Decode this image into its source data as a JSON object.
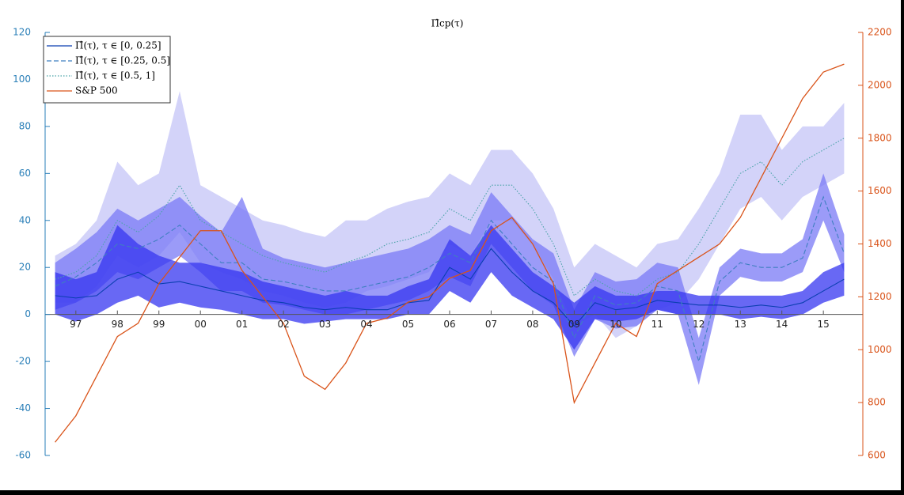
{
  "chart_data": {
    "type": "line",
    "title": "Π̂cp(τ)",
    "x": [
      1996.5,
      1997,
      1997.5,
      1998,
      1998.5,
      1999,
      1999.5,
      2000,
      2000.5,
      2001,
      2001.5,
      2002,
      2002.5,
      2003,
      2003.5,
      2004,
      2004.5,
      2005,
      2005.5,
      2006,
      2006.5,
      2007,
      2007.5,
      2008,
      2008.5,
      2009,
      2009.5,
      2010,
      2010.5,
      2011,
      2011.5,
      2012,
      2012.5,
      2013,
      2013.5,
      2014,
      2014.5,
      2015,
      2015.5
    ],
    "xlim": [
      1996.26,
      2015.95
    ],
    "xticks": [
      {
        "value": 1997,
        "label": "97"
      },
      {
        "value": 1998,
        "label": "98"
      },
      {
        "value": 1999,
        "label": "99"
      },
      {
        "value": 2000,
        "label": "00"
      },
      {
        "value": 2001,
        "label": "01"
      },
      {
        "value": 2002,
        "label": "02"
      },
      {
        "value": 2003,
        "label": "03"
      },
      {
        "value": 2004,
        "label": "04"
      },
      {
        "value": 2005,
        "label": "05"
      },
      {
        "value": 2006,
        "label": "06"
      },
      {
        "value": 2007,
        "label": "07"
      },
      {
        "value": 2008,
        "label": "08"
      },
      {
        "value": 2009,
        "label": "09"
      },
      {
        "value": 2010,
        "label": "10"
      },
      {
        "value": 2011,
        "label": "11"
      },
      {
        "value": 2012,
        "label": "12"
      },
      {
        "value": 2013,
        "label": "13"
      },
      {
        "value": 2014,
        "label": "14"
      },
      {
        "value": 2015,
        "label": "15"
      }
    ],
    "ylim": [
      -60,
      120
    ],
    "yticks": [
      -60,
      -40,
      -20,
      0,
      20,
      40,
      60,
      80,
      100,
      120
    ],
    "y2lim": [
      600,
      2200
    ],
    "y2ticks": [
      600,
      800,
      1000,
      1200,
      1400,
      1600,
      1800,
      2000,
      2200
    ],
    "legend": "upper left",
    "series": [
      {
        "name": "Π̂(τ), τ ∈ [0, 0.25]",
        "color": "#0a3fb0",
        "band_color": "#3535f0",
        "dash": "solid",
        "values": [
          8,
          7,
          8,
          15,
          18,
          13,
          14,
          12,
          10,
          8,
          6,
          5,
          3,
          2,
          3,
          2,
          2,
          5,
          6,
          20,
          15,
          28,
          18,
          10,
          5,
          -5,
          5,
          2,
          3,
          6,
          5,
          4,
          4,
          3,
          4,
          3,
          5,
          10,
          15
        ],
        "lower": [
          0,
          -3,
          0,
          5,
          8,
          3,
          5,
          3,
          2,
          0,
          -2,
          -2,
          -4,
          -3,
          -2,
          -2,
          -2,
          0,
          0,
          10,
          5,
          18,
          8,
          3,
          -2,
          -15,
          -2,
          -3,
          -2,
          2,
          0,
          0,
          0,
          -2,
          -1,
          -2,
          0,
          5,
          8
        ],
        "upper": [
          18,
          15,
          18,
          38,
          30,
          25,
          22,
          22,
          20,
          18,
          14,
          12,
          10,
          8,
          10,
          8,
          8,
          12,
          15,
          32,
          25,
          38,
          28,
          18,
          12,
          5,
          12,
          8,
          8,
          10,
          10,
          8,
          8,
          8,
          8,
          8,
          10,
          18,
          22
        ]
      },
      {
        "name": "Π̂(τ), τ ∈ [0.25, 0.5]",
        "color": "#3f7fc0",
        "band_color": "#7a7af5",
        "dash": "dashed",
        "values": [
          12,
          16,
          22,
          30,
          28,
          32,
          38,
          30,
          22,
          22,
          15,
          14,
          12,
          10,
          10,
          12,
          14,
          16,
          20,
          26,
          22,
          40,
          30,
          20,
          14,
          -10,
          8,
          4,
          5,
          12,
          10,
          -20,
          14,
          22,
          20,
          20,
          24,
          50,
          26
        ],
        "lower": [
          2,
          5,
          10,
          18,
          15,
          20,
          25,
          18,
          10,
          10,
          5,
          4,
          2,
          0,
          0,
          2,
          4,
          6,
          10,
          16,
          12,
          30,
          20,
          10,
          4,
          -18,
          -2,
          -6,
          -5,
          2,
          0,
          -30,
          8,
          16,
          14,
          14,
          18,
          40,
          18
        ],
        "upper": [
          22,
          28,
          35,
          45,
          40,
          45,
          50,
          42,
          35,
          50,
          28,
          24,
          22,
          20,
          22,
          24,
          26,
          28,
          32,
          38,
          34,
          52,
          42,
          32,
          26,
          2,
          18,
          14,
          15,
          22,
          20,
          -10,
          20,
          28,
          26,
          26,
          32,
          60,
          34
        ]
      },
      {
        "name": "Π̂(τ), τ ∈ [0.5, 1]",
        "color": "#4aa3a8",
        "band_color": "#c4c4f7",
        "dash": "dotted",
        "values": [
          15,
          18,
          25,
          40,
          35,
          42,
          55,
          40,
          35,
          30,
          25,
          22,
          20,
          18,
          22,
          25,
          30,
          32,
          35,
          45,
          40,
          55,
          55,
          45,
          30,
          8,
          15,
          10,
          8,
          15,
          18,
          30,
          45,
          60,
          65,
          55,
          65,
          70,
          75
        ],
        "lower": [
          5,
          5,
          12,
          25,
          20,
          25,
          35,
          22,
          18,
          15,
          10,
          8,
          5,
          3,
          5,
          10,
          12,
          15,
          18,
          30,
          25,
          40,
          40,
          30,
          15,
          -5,
          0,
          -10,
          -5,
          2,
          5,
          15,
          30,
          45,
          50,
          40,
          50,
          55,
          60
        ],
        "upper": [
          25,
          30,
          40,
          65,
          55,
          60,
          95,
          55,
          50,
          45,
          40,
          38,
          35,
          33,
          40,
          40,
          45,
          48,
          50,
          60,
          55,
          70,
          70,
          60,
          45,
          20,
          30,
          25,
          20,
          30,
          32,
          45,
          60,
          85,
          85,
          70,
          80,
          80,
          90
        ]
      },
      {
        "name": "S&P 500",
        "color": "#d95319",
        "dash": "solid",
        "axis": "y2",
        "values": [
          650,
          750,
          900,
          1050,
          1100,
          1250,
          1350,
          1450,
          1450,
          1300,
          1200,
          1100,
          900,
          850,
          950,
          1100,
          1120,
          1180,
          1200,
          1270,
          1300,
          1450,
          1500,
          1400,
          1250,
          800,
          950,
          1100,
          1050,
          1250,
          1300,
          1350,
          1400,
          1500,
          1650,
          1800,
          1950,
          2050,
          2080
        ]
      }
    ]
  }
}
